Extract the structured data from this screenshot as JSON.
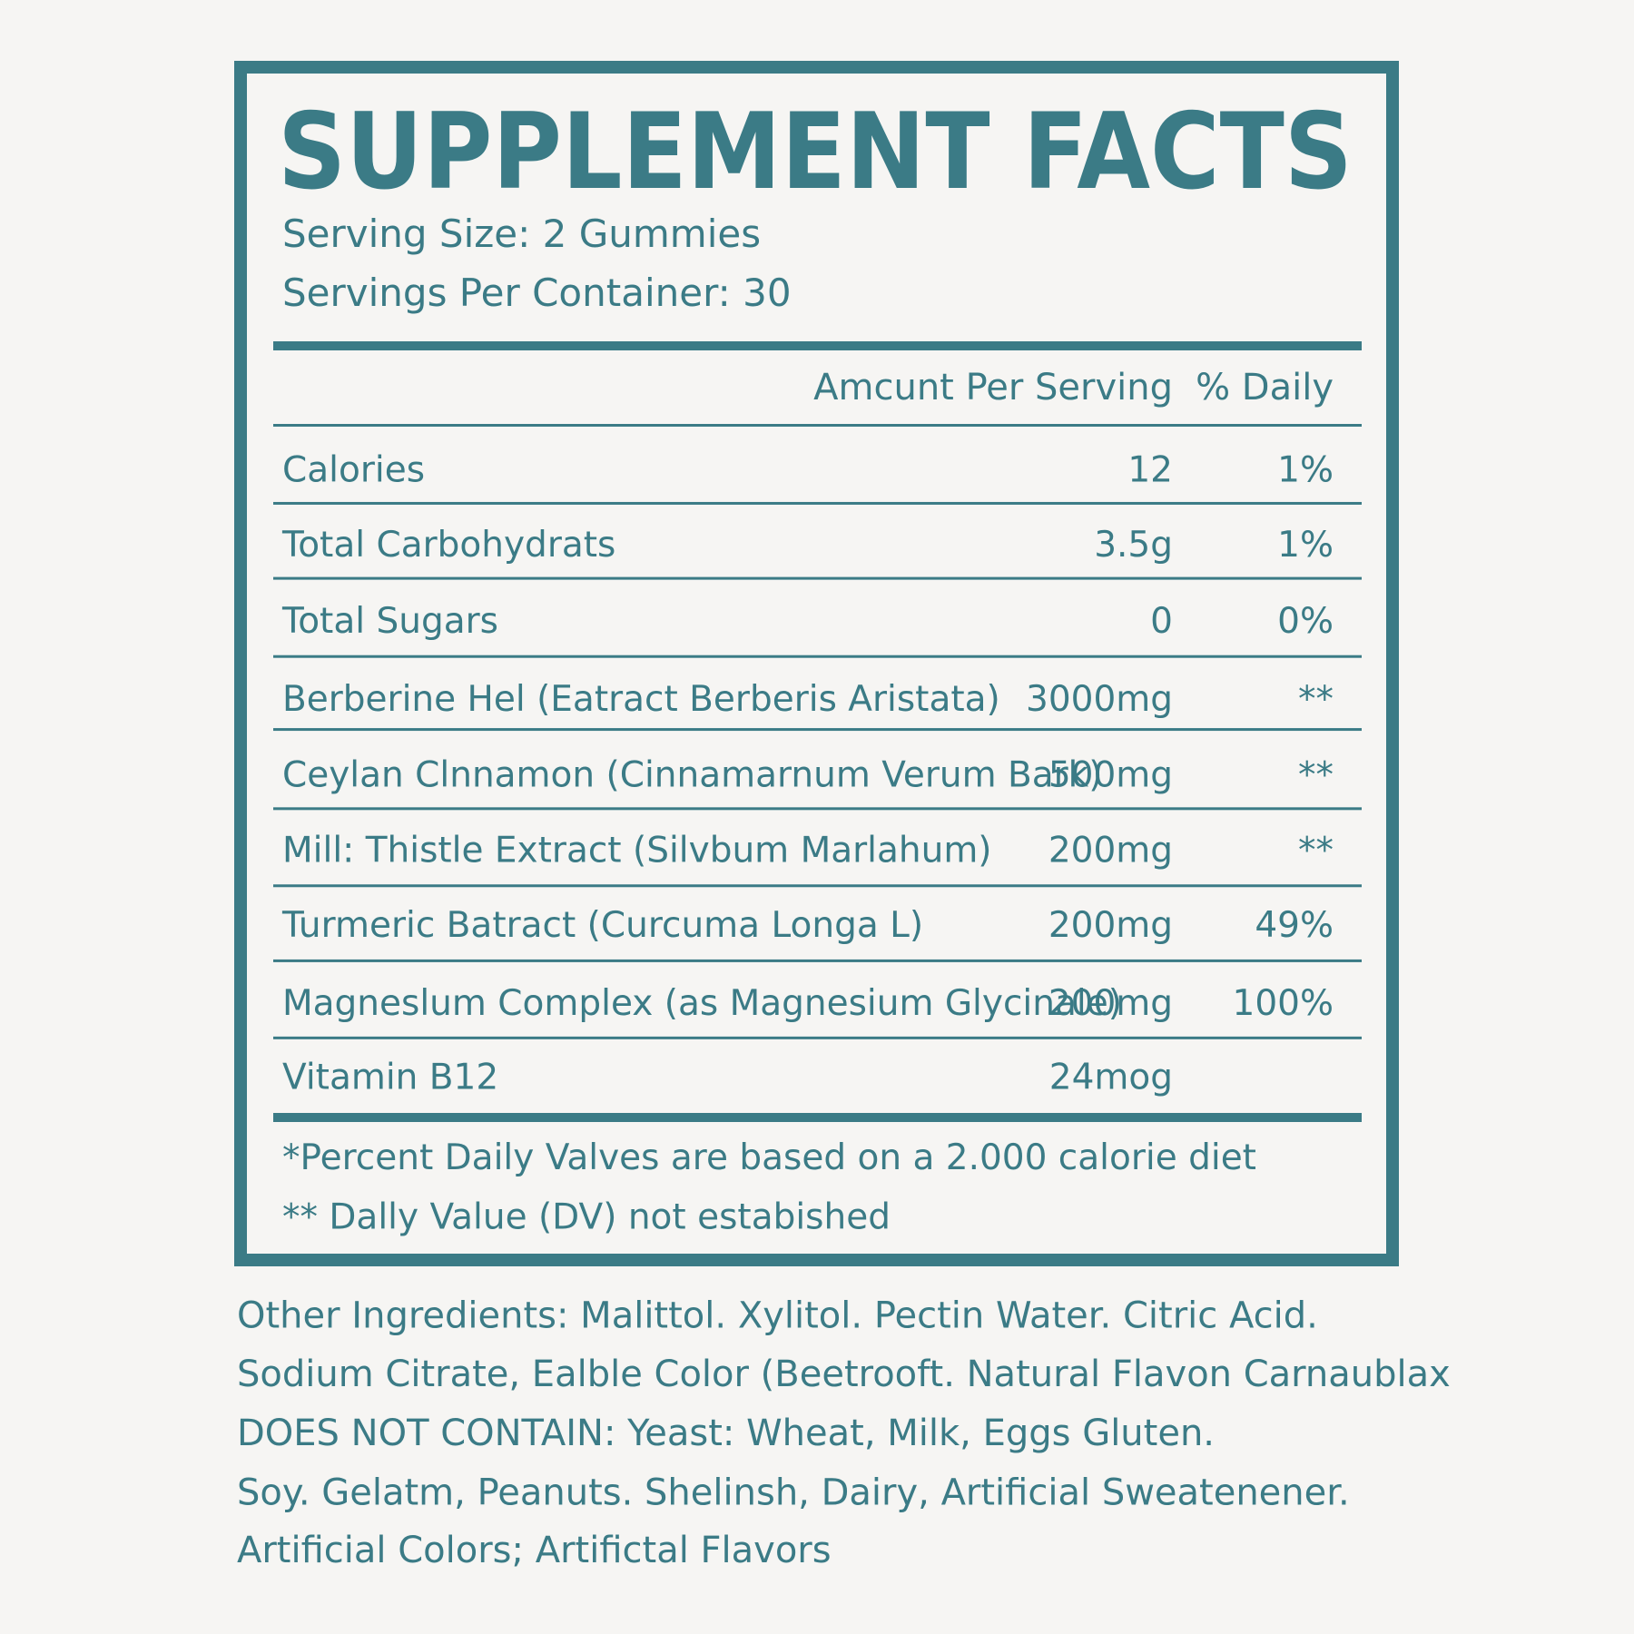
{
  "title": "SUPPLEMENT FACTS",
  "serving_size": "Serving Size: 2 Gummies",
  "servings_per_container": "Servings Per Container: 30",
  "table": {
    "header": [
      "Amcunt Per Serving",
      "% Daily"
    ],
    "rows": [
      {
        "name": "Calories",
        "amount": "12",
        "daily_value": "1%"
      },
      {
        "name": "Total Carbohydrats",
        "amount": "3.5g",
        "daily_value": "1%"
      },
      {
        "name": "Total Sugars",
        "amount": "0",
        "daily_value": "0%"
      },
      {
        "name": "Berberine Hel (Eatract Berberis Aristata)",
        "amount": "3000mg",
        "daily_value": "**"
      },
      {
        "name": "Ceylan Clnnamon (Cinnamarnum Verum Bark)",
        "amount": "500mg",
        "daily_value": "**"
      },
      {
        "name": "Mill: Thistle Extract (Silvbum Marlahum)",
        "amount": "200mg",
        "daily_value": "**"
      },
      {
        "name": "Turmeric Batract (Curcuma Longa L)",
        "amount": "200mg",
        "daily_value": "49%"
      },
      {
        "name": "Magneslum Complex (as Magnesium Glycinale)",
        "amount": "200mg",
        "daily_value": "100%"
      },
      {
        "name": "Vitamin B12",
        "amount": "24mog"
      }
    ]
  },
  "footnotes": [
    "*Percent Daily Valves are based on a 2.000 calorie diet",
    "** Dally Value (DV) not estabished"
  ],
  "other_ingredients": [
    "Other Ingredients: Malittol. Xylitol. Pectin Water. Citric Acid.",
    "Sodium Citrate, Ealble Color (Beetrooft. Natural Flavon Carnaublax",
    "DOES NOT CONTAIN: Yeast: Wheat, Milk, Eggs Gluten.",
    "Soy. Gelatm, Peanuts. Shelinsh, Dairy, Artificial Sweatenener.",
    "Artificial Colors; Artifictal Flavors"
  ]
}
